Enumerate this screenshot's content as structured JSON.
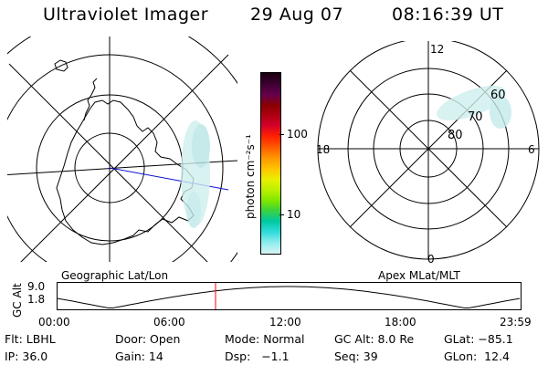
{
  "header": {
    "title": "Ultraviolet Imager",
    "date": "29 Aug 07",
    "time": "08:16:39 UT"
  },
  "colorbar": {
    "label": "photon cm⁻²s⁻¹",
    "ticks": [
      "100",
      "10"
    ],
    "colors": [
      "#1a0010",
      "#3b0030",
      "#66004d",
      "#8b0000",
      "#b00014",
      "#d4002a",
      "#ff2000",
      "#ff5a00",
      "#ff9600",
      "#ffc400",
      "#e8f000",
      "#b8f000",
      "#7ce600",
      "#3cd23c",
      "#00c8a0",
      "#30dcdc",
      "#90ecec",
      "#d8f4f4"
    ]
  },
  "left_map": {
    "caption": "Geographic Lat/Lon"
  },
  "right_map": {
    "caption": "Apex MLat/MLT",
    "mlt_labels": {
      "top": "12",
      "right": "6",
      "bottom": "0",
      "left": "18"
    },
    "lat_labels": [
      "60",
      "70",
      "80"
    ]
  },
  "altitude_plot": {
    "ylabel": "GC Alt",
    "yticks": [
      "9.0",
      "1.8"
    ],
    "xticks": [
      "00:00",
      "06:00",
      "12:00",
      "18:00",
      "23:59"
    ],
    "marker_color": "#ff0000"
  },
  "info": {
    "row1": [
      "Flt: LBHL",
      "Door: Open",
      "Mode: Normal",
      "GC Alt: 8.0 Re",
      "GLat: −85.1"
    ],
    "row2": [
      "IP: 36.0",
      "Gain: 14",
      "Dsp:   −1.1",
      "Seq: 39",
      "GLon:  12.4"
    ]
  }
}
